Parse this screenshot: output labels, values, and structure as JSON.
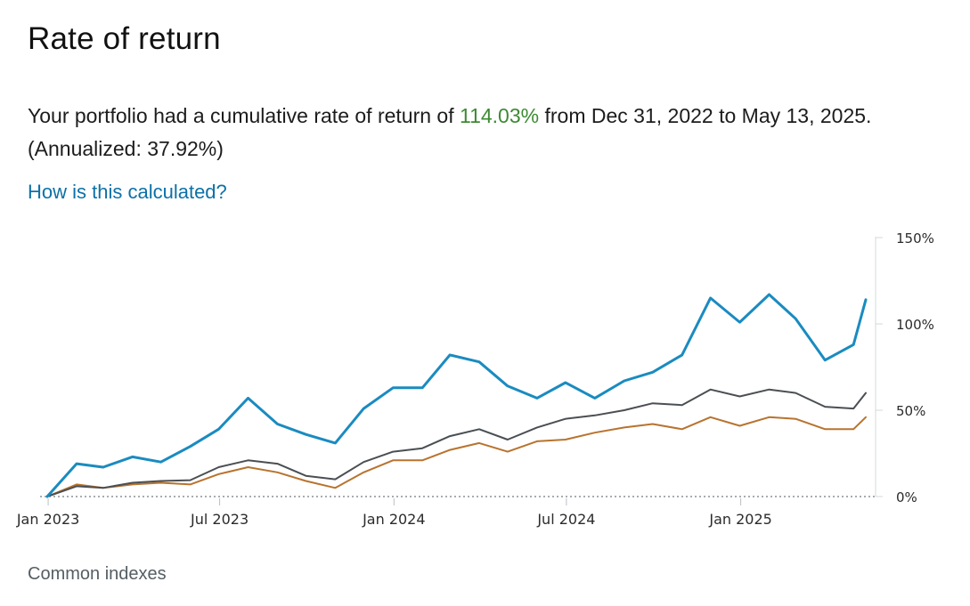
{
  "page": {
    "title": "Rate of return",
    "summary_prefix": "Your portfolio had a cumulative rate of return of ",
    "summary_pct": "114.03%",
    "summary_suffix": " from Dec 31, 2022 to May 13, 2025. (Annualized: 37.92%)",
    "calc_link": "How is this calculated?",
    "common_indexes_label": "Common indexes",
    "accent_green": "#3d8a32",
    "link_color": "#0c71a7"
  },
  "chart_data": {
    "type": "line",
    "title": "",
    "xlabel": "",
    "ylabel": "",
    "x": [
      "2022-12-31",
      "2023-01-31",
      "2023-02-28",
      "2023-03-31",
      "2023-04-30",
      "2023-05-31",
      "2023-06-30",
      "2023-07-31",
      "2023-08-31",
      "2023-09-30",
      "2023-10-31",
      "2023-11-30",
      "2023-12-31",
      "2024-01-31",
      "2024-02-29",
      "2024-03-31",
      "2024-04-30",
      "2024-05-31",
      "2024-06-30",
      "2024-07-31",
      "2024-08-31",
      "2024-09-30",
      "2024-10-31",
      "2024-11-30",
      "2024-12-31",
      "2025-01-31",
      "2025-02-28",
      "2025-03-31",
      "2025-04-30",
      "2025-05-13"
    ],
    "x_tick_labels": [
      {
        "date": "2023-01-01",
        "label": "Jan 2023"
      },
      {
        "date": "2023-07-01",
        "label": "Jul 2023"
      },
      {
        "date": "2024-01-01",
        "label": "Jan 2024"
      },
      {
        "date": "2024-07-01",
        "label": "Jul 2024"
      },
      {
        "date": "2025-01-01",
        "label": "Jan 2025"
      }
    ],
    "y_ticks": [
      0,
      50,
      100,
      150
    ],
    "y_tick_labels": [
      "0%",
      "50%",
      "100%",
      "150%"
    ],
    "ylim": [
      0,
      150
    ],
    "xlim": [
      "2022-12-31",
      "2025-05-13"
    ],
    "zero_line": "dotted",
    "series": [
      {
        "color": "#1a8bc0",
        "values": [
          0,
          19,
          17,
          23,
          20,
          29,
          39,
          57,
          42,
          36,
          31,
          51,
          63,
          63,
          82,
          78,
          64,
          57,
          66,
          57,
          67,
          72,
          82,
          115,
          101,
          117,
          103,
          79,
          88,
          114
        ]
      },
      {
        "color": "#4a4f53",
        "values": [
          0,
          6,
          5,
          8,
          9,
          9.5,
          17,
          21,
          19,
          12,
          10,
          20,
          26,
          28,
          35,
          39,
          33,
          40,
          45,
          47,
          50,
          54,
          53,
          62,
          58,
          62,
          60,
          52,
          51,
          60
        ]
      },
      {
        "color": "#b8732e",
        "values": [
          0,
          7,
          5,
          7,
          8,
          7,
          13,
          17,
          14,
          9,
          5,
          14,
          21,
          21,
          27,
          31,
          26,
          32,
          33,
          37,
          40,
          42,
          39,
          46,
          41,
          46,
          45,
          39,
          39,
          46
        ]
      }
    ]
  }
}
